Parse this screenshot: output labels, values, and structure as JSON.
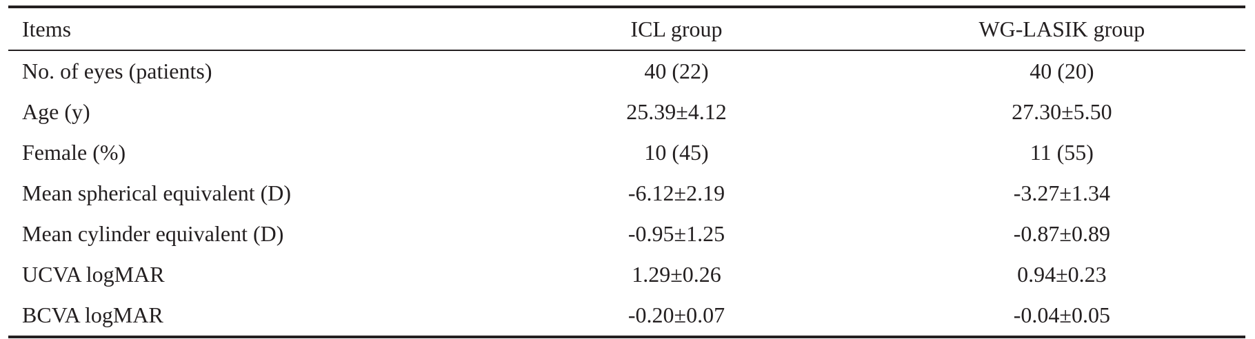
{
  "table": {
    "headers": [
      "Items",
      "ICL group",
      "WG-LASIK group"
    ],
    "rows": [
      [
        "No. of eyes (patients)",
        "40 (22)",
        "40 (20)"
      ],
      [
        "Age (y)",
        "25.39±4.12",
        "27.30±5.50"
      ],
      [
        "Female (%)",
        "10 (45)",
        "11 (55)"
      ],
      [
        "Mean spherical equivalent (D)",
        "-6.12±2.19",
        "-3.27±1.34"
      ],
      [
        "Mean cylinder equivalent (D)",
        "-0.95±1.25",
        "-0.87±0.89"
      ],
      [
        "UCVA logMAR",
        "1.29±0.26",
        "0.94±0.23"
      ],
      [
        "BCVA logMAR",
        "-0.20±0.07",
        "-0.04±0.05"
      ]
    ]
  }
}
